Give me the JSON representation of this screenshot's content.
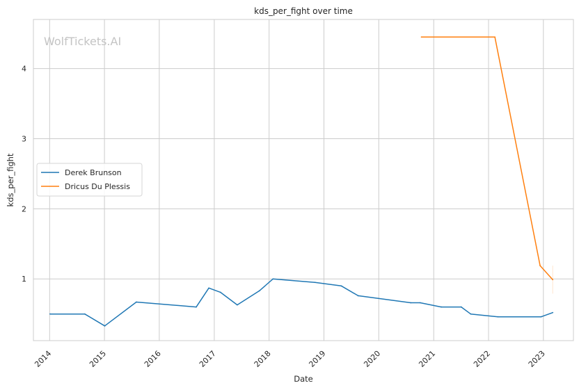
{
  "chart_data": {
    "type": "line",
    "title": "kds_per_fight over time",
    "xlabel": "Date",
    "ylabel": "kds_per_fight",
    "watermark": "WolfTickets.AI",
    "xlim": [
      "2013-09-15",
      "2023-07-20"
    ],
    "ylim": [
      0.12,
      4.7
    ],
    "x_ticks": [
      "2014",
      "2015",
      "2016",
      "2017",
      "2018",
      "2019",
      "2020",
      "2021",
      "2022",
      "2023"
    ],
    "y_ticks": [
      1,
      2,
      3,
      4
    ],
    "grid": true,
    "legend_position": "center-left",
    "series": [
      {
        "name": "Derek Brunson",
        "color": "#1f77b4",
        "points": [
          [
            "2014-01-04",
            0.5
          ],
          [
            "2014-08-23",
            0.5
          ],
          [
            "2015-01-03",
            0.33
          ],
          [
            "2015-08-01",
            0.67
          ],
          [
            "2016-09-03",
            0.6
          ],
          [
            "2016-11-26",
            0.87
          ],
          [
            "2017-02-11",
            0.81
          ],
          [
            "2017-06-03",
            0.63
          ],
          [
            "2017-10-28",
            0.83
          ],
          [
            "2018-01-27",
            1.0
          ],
          [
            "2018-11-03",
            0.95
          ],
          [
            "2019-04-27",
            0.9
          ],
          [
            "2019-08-17",
            0.76
          ],
          [
            "2020-08-01",
            0.66
          ],
          [
            "2020-10-03",
            0.66
          ],
          [
            "2021-02-20",
            0.6
          ],
          [
            "2021-07-03",
            0.6
          ],
          [
            "2021-09-04",
            0.5
          ],
          [
            "2022-03-05",
            0.46
          ],
          [
            "2022-12-17",
            0.46
          ],
          [
            "2023-03-04",
            0.52
          ]
        ]
      },
      {
        "name": "Dricus Du Plessis",
        "color": "#ff7f0e",
        "points": [
          [
            "2020-10-11",
            4.45
          ],
          [
            "2022-02-12",
            4.45
          ],
          [
            "2022-12-10",
            1.19
          ],
          [
            "2023-03-04",
            0.99
          ]
        ]
      }
    ]
  }
}
